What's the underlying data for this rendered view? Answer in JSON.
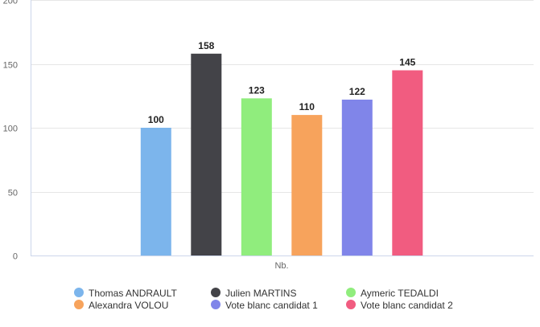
{
  "chart_data": {
    "type": "bar",
    "categories": [
      "Nb."
    ],
    "series": [
      {
        "name": "Thomas ANDRAULT",
        "values": [
          100
        ],
        "color": "#7cb5ec"
      },
      {
        "name": "Julien MARTINS",
        "values": [
          158
        ],
        "color": "#434348"
      },
      {
        "name": "Aymeric TEDALDI",
        "values": [
          123
        ],
        "color": "#90ed7d"
      },
      {
        "name": "Alexandra VOLOU",
        "values": [
          110
        ],
        "color": "#f7a35c"
      },
      {
        "name": "Vote blanc candidat 1",
        "values": [
          122
        ],
        "color": "#8085e9"
      },
      {
        "name": "Vote blanc candidat 2",
        "values": [
          145
        ],
        "color": "#f15c80"
      }
    ],
    "yticks": [
      0,
      50,
      100,
      150,
      200
    ],
    "ylim": [
      0,
      200
    ],
    "grid": true,
    "data_labels": true,
    "legend_position": "bottom"
  }
}
